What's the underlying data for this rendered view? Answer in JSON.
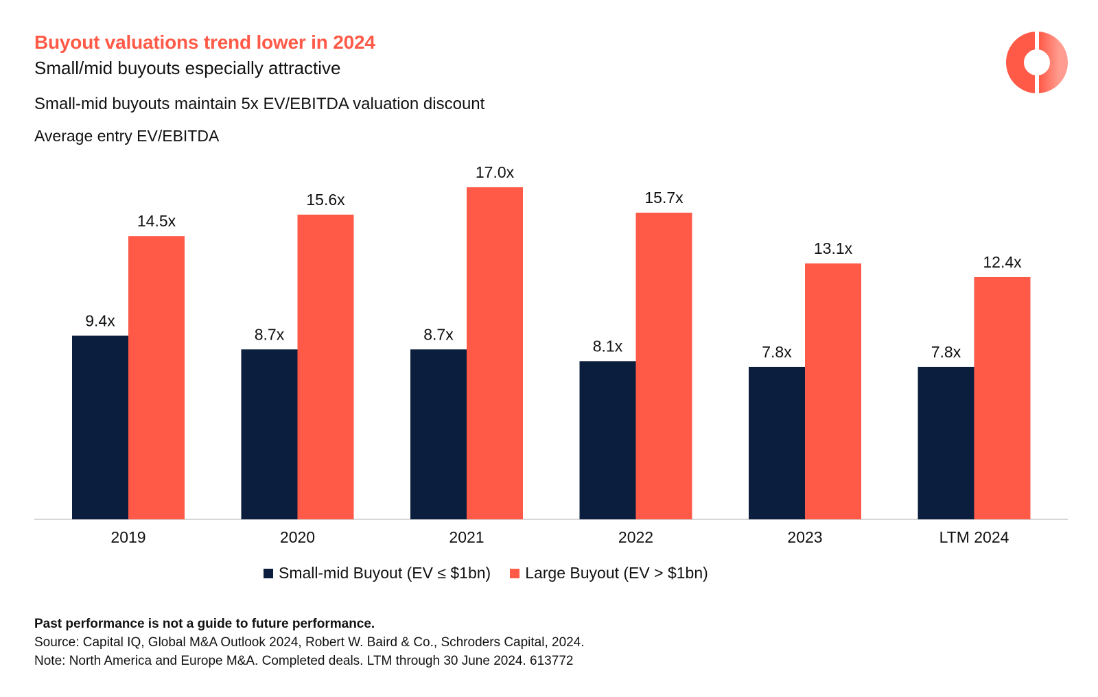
{
  "header": {
    "headline": "Buyout valuations trend lower in 2024",
    "subheadline": "Small/mid buyouts especially attractive"
  },
  "logo": {
    "icon": "ring-logo-icon",
    "color": "#ff5a47"
  },
  "chart_data": {
    "type": "bar",
    "title": "Small-mid buyouts maintain 5x EV/EBITDA valuation discount",
    "ylabel": "Average entry EV/EBITDA",
    "xlabel": "",
    "categories": [
      "2019",
      "2020",
      "2021",
      "2022",
      "2023",
      "LTM 2024"
    ],
    "series": [
      {
        "name": "Small-mid Buyout (EV ≤ $1bn)",
        "color": "#0c1e3e",
        "values": [
          9.4,
          8.7,
          8.7,
          8.1,
          7.8,
          7.8
        ],
        "labels": [
          "9.4x",
          "8.7x",
          "8.7x",
          "8.1x",
          "7.8x",
          "7.8x"
        ]
      },
      {
        "name": "Large Buyout (EV > $1bn)",
        "color": "#ff5a47",
        "values": [
          14.5,
          15.6,
          17.0,
          15.7,
          13.1,
          12.4
        ],
        "labels": [
          "14.5x",
          "15.6x",
          "17.0x",
          "15.7x",
          "13.1x",
          "12.4x"
        ]
      }
    ],
    "ylim": [
      0,
      17.0
    ],
    "grid": false,
    "legend_position": "bottom"
  },
  "footer": {
    "disclaimer": "Past performance is not a guide to future performance.",
    "source": "Source: Capital IQ, Global M&A Outlook 2024, Robert W. Baird & Co., Schroders Capital, 2024.",
    "note": "Note: North America and Europe M&A. Completed deals. LTM through 30 June 2024. 613772"
  }
}
